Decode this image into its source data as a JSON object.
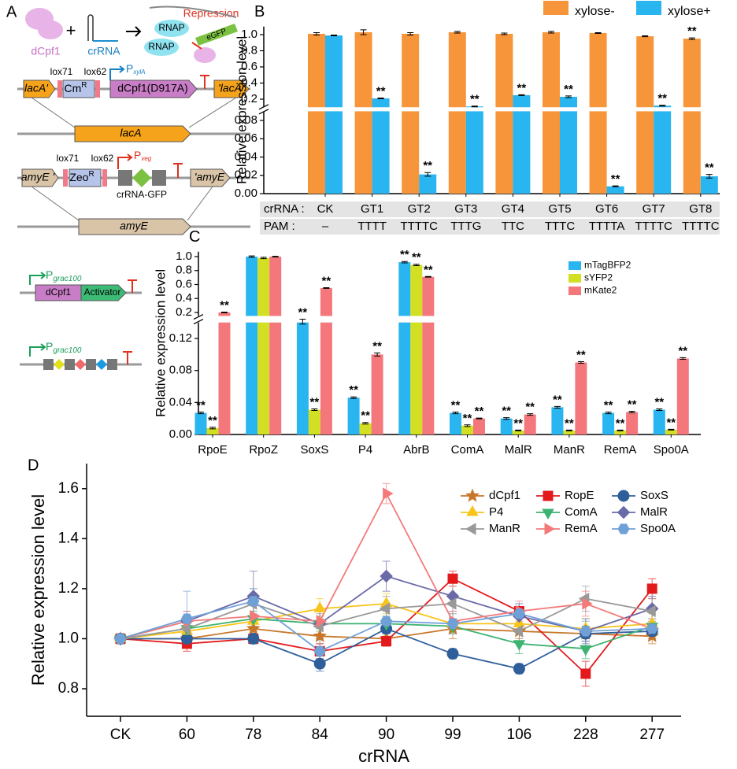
{
  "panel_a": {
    "letter": "A",
    "dcpf1": "dCpf1",
    "crrna": "crRNA",
    "repression": "Repression",
    "rnap": [
      "RNAP",
      "RNAP"
    ],
    "egfp": "eGFP",
    "row1": {
      "lox71": "lox71",
      "lox62": "lox62",
      "promoter": "P",
      "promoter_sub": "xylA",
      "left": "lacA'",
      "marker": "Cm",
      "marker_sup": "R",
      "gene": "dCpf1(D917A)",
      "right": "'lacA"
    },
    "locus1": "lacA",
    "row2": {
      "lox71": "lox71",
      "lox62": "lox62",
      "promoter": "P",
      "promoter_sub": "veg",
      "left": "amyE '",
      "marker": "Zeo",
      "marker_sup": "R",
      "cassette": "crRNA-GFP",
      "right": "'amyE"
    },
    "locus2": "amyE"
  },
  "panel_c_diagram": {
    "construct1": {
      "promoter": "P",
      "promoter_sub": "grac100",
      "gene": "dCpf1",
      "fusion": "Activator"
    },
    "construct2": {
      "promoter": "P",
      "promoter_sub": "grac100"
    }
  },
  "chart_data": [
    {
      "type": "broken-bar",
      "panel": "B",
      "y_label": "Relative expression level",
      "categories": [
        "CK",
        "GT1",
        "GT2",
        "GT3",
        "GT4",
        "GT5",
        "GT6",
        "GT7",
        "GT8"
      ],
      "table_row_labels": [
        "crRNA :",
        "PAM :"
      ],
      "pam": [
        "–",
        "TTTT",
        "TTTTC",
        "TTTG",
        "TTC",
        "TTTC",
        "TTTTA",
        "TTTTC",
        "TTTTC"
      ],
      "series": [
        {
          "name": "xylose-",
          "color": "#f7953a",
          "values": [
            1.01,
            1.03,
            1.01,
            1.03,
            1.01,
            1.03,
            1.02,
            0.98,
            0.95
          ],
          "errors": [
            0.015,
            0.03,
            0.015,
            0.01,
            0.01,
            0.01,
            0.005,
            0.005,
            0.01
          ],
          "significance": [
            null,
            null,
            null,
            null,
            null,
            null,
            null,
            null,
            "**"
          ]
        },
        {
          "name": "xylose+",
          "color": "#29b5ef",
          "values": [
            0.99,
            0.21,
            0.021,
            0.11,
            0.25,
            0.23,
            0.008,
            0.12,
            0.019
          ],
          "errors": [
            0.005,
            0.005,
            0.002,
            0.005,
            0.005,
            0.01,
            0.0005,
            0.005,
            0.002
          ],
          "significance": [
            null,
            "**",
            "**",
            "**",
            "**",
            "**",
            "**",
            "**",
            "**"
          ]
        }
      ],
      "ylim": [
        0,
        1.1
      ],
      "y_break": [
        0.09,
        0.1
      ],
      "yticks": [
        {
          "value": 0,
          "label": "0.00"
        },
        0.02,
        0.04,
        0.06,
        0.08,
        0.2,
        0.4,
        0.6,
        0.8,
        {
          "value": 1,
          "label": "1.0"
        }
      ],
      "legend": "top-right"
    },
    {
      "type": "broken-bar",
      "panel": "C",
      "y_label": "Relative expression level",
      "categories": [
        "RpoE",
        "RpoZ",
        "SoxS",
        "P4",
        "AbrB",
        "ComA",
        "MalR",
        "ManR",
        "RemA",
        "Spo0A"
      ],
      "series": [
        {
          "name": "mTagBFP2",
          "color": "#29b5ef",
          "values": [
            0.027,
            1.0,
            0.14,
            0.046,
            0.92,
            0.027,
            0.02,
            0.034,
            0.027,
            0.031
          ],
          "errors": [
            0.001,
            0.01,
            0.002,
            0.001,
            0.01,
            0.001,
            0.001,
            0.001,
            0.001,
            0.001
          ],
          "significance": [
            "**",
            null,
            "**",
            "**",
            "**",
            "**",
            "**",
            "**",
            "**",
            "**"
          ]
        },
        {
          "name": "sYFP2",
          "color": "#d2df22",
          "values": [
            0.008,
            0.98,
            0.031,
            0.014,
            0.88,
            0.011,
            0.005,
            0.005,
            0.005,
            0.006
          ],
          "errors": [
            0.001,
            0.01,
            0.001,
            0.001,
            0.01,
            0.001,
            0.0005,
            0.0005,
            0.0005,
            0.0005
          ],
          "significance": [
            "**",
            null,
            "**",
            "**",
            "**",
            "**",
            "**",
            "**",
            "**",
            "**"
          ]
        },
        {
          "name": "mKate2",
          "color": "#f4777b",
          "values": [
            0.2,
            1.0,
            0.55,
            0.1,
            0.71,
            0.02,
            0.025,
            0.09,
            0.028,
            0.095
          ],
          "errors": [
            0.005,
            0.005,
            0.005,
            0.002,
            0.005,
            0.0005,
            0.001,
            0.001,
            0.001,
            0.001
          ],
          "significance": [
            "**",
            null,
            "**",
            "**",
            "**",
            "**",
            "**",
            "**",
            "**",
            "**"
          ]
        }
      ],
      "ylim": [
        0,
        1.07
      ],
      "y_break": [
        0.14,
        0.15
      ],
      "yticks": [
        {
          "value": 0,
          "label": "0.00"
        },
        0.04,
        0.08,
        0.12,
        0.2,
        0.4,
        0.6,
        0.8,
        {
          "value": 1,
          "label": "1.0"
        }
      ],
      "legend": "top-right"
    },
    {
      "type": "line",
      "panel": "D",
      "x_label": "crRNA",
      "y_label": "Relative expression level",
      "categories": [
        "CK",
        "60",
        "78",
        "84",
        "90",
        "99",
        "106",
        "228",
        "277"
      ],
      "series": [
        {
          "name": "dCpf1",
          "color": "#c8772a",
          "marker": "star",
          "values": [
            1.0,
            1.0,
            1.04,
            1.01,
            1.0,
            1.04,
            1.03,
            1.02,
            1.01
          ],
          "errors": [
            0.01,
            0.03,
            0.03,
            0.03,
            0.03,
            0.04,
            0.03,
            0.03,
            0.03
          ]
        },
        {
          "name": "RopE",
          "color": "#e31a1c",
          "marker": "square",
          "values": [
            1.0,
            0.98,
            1.0,
            0.95,
            0.99,
            1.24,
            1.11,
            0.86,
            1.2
          ],
          "errors": [
            0.01,
            0.03,
            0.02,
            0.03,
            0.02,
            0.03,
            0.03,
            0.05,
            0.04
          ]
        },
        {
          "name": "SoxS",
          "color": "#2f5f9a",
          "marker": "circle",
          "values": [
            1.0,
            1.0,
            1.0,
            0.9,
            1.04,
            0.94,
            0.88,
            1.02,
            1.03
          ],
          "errors": [
            0.01,
            0.02,
            0.02,
            0.03,
            0.02,
            0.02,
            0.02,
            0.03,
            0.03
          ]
        },
        {
          "name": "P4",
          "color": "#f7c41a",
          "marker": "triangle-up",
          "values": [
            1.0,
            1.03,
            1.07,
            1.12,
            1.14,
            1.06,
            1.06,
            1.04,
            1.06
          ],
          "errors": [
            0.01,
            0.04,
            0.04,
            0.04,
            0.04,
            0.04,
            0.04,
            0.04,
            0.04
          ]
        },
        {
          "name": "ComA",
          "color": "#3cb371",
          "marker": "triangle-down",
          "values": [
            1.0,
            1.04,
            1.08,
            1.06,
            1.06,
            1.05,
            0.98,
            0.96,
            1.05
          ],
          "errors": [
            0.01,
            0.03,
            0.03,
            0.03,
            0.03,
            0.03,
            0.04,
            0.04,
            0.03
          ]
        },
        {
          "name": "MalR",
          "color": "#6a6aa8",
          "marker": "diamond",
          "values": [
            1.0,
            1.07,
            1.17,
            1.06,
            1.25,
            1.17,
            1.09,
            1.03,
            1.12
          ],
          "errors": [
            0.01,
            0.04,
            0.1,
            0.05,
            0.06,
            0.06,
            0.05,
            0.05,
            0.05
          ]
        },
        {
          "name": "ManR",
          "color": "#999999",
          "marker": "triangle-left",
          "values": [
            1.0,
            1.04,
            1.14,
            1.05,
            1.12,
            1.14,
            1.03,
            1.16,
            1.11
          ],
          "errors": [
            0.01,
            0.05,
            0.06,
            0.05,
            0.05,
            0.1,
            0.05,
            0.05,
            0.05
          ]
        },
        {
          "name": "RemA",
          "color": "#f47a7a",
          "marker": "triangle-right",
          "values": [
            1.0,
            1.07,
            1.09,
            1.07,
            1.58,
            1.07,
            1.11,
            1.14,
            1.04
          ],
          "errors": [
            0.01,
            0.04,
            0.05,
            0.05,
            0.04,
            0.04,
            0.04,
            0.05,
            0.04
          ]
        },
        {
          "name": "Spo0A",
          "color": "#6fa0d8",
          "marker": "hexagon",
          "values": [
            1.0,
            1.08,
            1.15,
            0.95,
            1.07,
            1.06,
            1.1,
            1.03,
            1.04
          ],
          "errors": [
            0.01,
            0.11,
            0.05,
            0.05,
            0.04,
            0.04,
            0.04,
            0.04,
            0.04
          ]
        }
      ],
      "ylim": [
        0.69,
        1.7
      ],
      "yticks": [
        0.8,
        {
          "value": 1,
          "label": "1.0"
        },
        1.2,
        1.4,
        1.6
      ],
      "legend": "top-right"
    }
  ]
}
